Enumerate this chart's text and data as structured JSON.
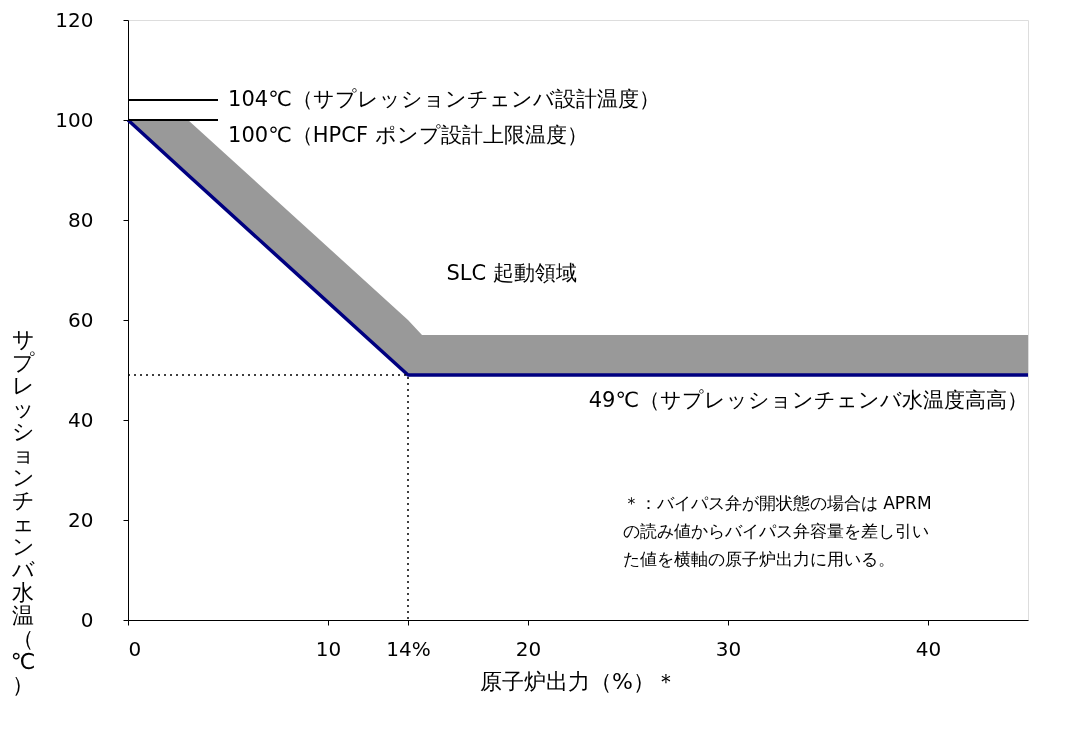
{
  "chart_data": {
    "type": "line",
    "xlabel": "原子炉出力（%）＊",
    "ylabel": "サプレッションチェンバ水温（℃）",
    "xlim": [
      0,
      45
    ],
    "xticks": [
      0,
      10,
      {
        "value": 14,
        "label": "14%"
      },
      20,
      30,
      40
    ],
    "ylim": [
      0,
      120
    ],
    "yticks": [
      0,
      20,
      40,
      60,
      80,
      100,
      120
    ],
    "series": [
      {
        "color": "#000080",
        "x": [
          0,
          3,
          14,
          14.7,
          45
        ],
        "values": [
          100,
          89,
          49,
          49,
          49
        ],
        "lower": [
          100,
          89,
          49,
          49,
          49
        ],
        "upper": [
          100,
          100,
          60,
          57,
          57
        ]
      },
      {
        "color": "#000000",
        "x": [
          0,
          14,
          14
        ],
        "values": [
          49,
          49,
          0
        ],
        "line_style": "dotted"
      },
      {
        "color": "#000000",
        "x": [
          0,
          4.5
        ],
        "values": [
          104,
          104
        ]
      },
      {
        "color": "#000000",
        "x": [
          0,
          4.5
        ],
        "values": [
          100,
          100
        ]
      }
    ],
    "annotations": [
      "104℃（サプレッションチェンバ設計温度）",
      "100℃（HPCF ポンプ設計上限温度）",
      "SLC 起動領域",
      "49℃（サプレッションチェンバ水温度高高）",
      "＊：バイパス弁が開状態の場合は APRMの読み値からバイパス弁容量を差し引いた値を横軸の原子炉出力に用いる。"
    ]
  }
}
